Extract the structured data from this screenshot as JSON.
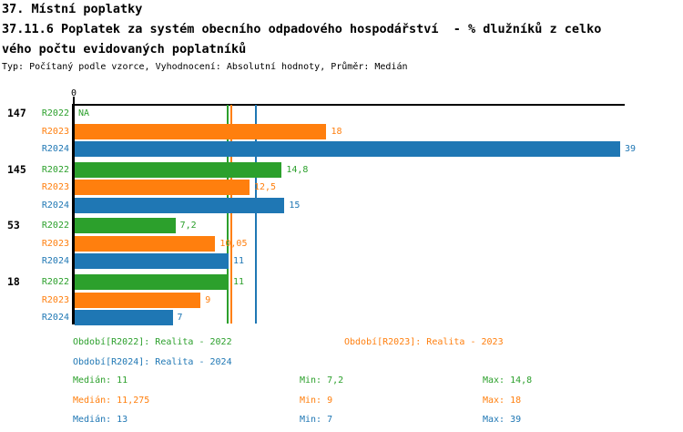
{
  "header": {
    "section_title": "37. Místní poplatky",
    "indicator_title_line1": "37.11.6 Poplatek za systém obecního odpadového hospodářství  - % dlužníků z celko",
    "indicator_title_line2": "vého počtu evidovaných poplatníků",
    "meta": "Typ: Počítaný podle vzorce, Vyhodnocení: Absolutní hodnoty, Průměr: Medián"
  },
  "chart_data": {
    "type": "bar",
    "orientation": "horizontal",
    "title": "37.11.6 Poplatek za systém obecního odpadového hospodářství - % dlužníků z celkového počtu evidovaných poplatníků",
    "axis": {
      "zero_label": "0",
      "x_min": 0,
      "x_max": 39
    },
    "categories": [
      "147",
      "145",
      "53",
      "18"
    ],
    "series": [
      {
        "name": "R2022",
        "color": "#2ca02c",
        "values": [
          null,
          14.8,
          7.2,
          11
        ],
        "value_labels": [
          "NA",
          "14,8",
          "7,2",
          "11"
        ],
        "median": 11,
        "median_label": "11"
      },
      {
        "name": "R2023",
        "color": "#ff7f0e",
        "values": [
          18,
          12.5,
          10.05,
          9
        ],
        "value_labels": [
          "18",
          "12,5",
          "10,05",
          "9"
        ],
        "median": 11.275,
        "median_label": "11,275"
      },
      {
        "name": "R2024",
        "color": "#1f77b4",
        "values": [
          39,
          15,
          11,
          7
        ],
        "value_labels": [
          "39",
          "15",
          "11",
          "7"
        ],
        "median": 13,
        "median_label": "13"
      }
    ],
    "legend_position": "bottom",
    "grid": false
  },
  "legend": {
    "items": [
      {
        "label": "Období[R2022]: Realita - 2022"
      },
      {
        "label": "Období[R2023]: Realita - 2023"
      },
      {
        "label": "Období[R2024]: Realita - 2024"
      }
    ]
  },
  "stats": {
    "rows": [
      {
        "median": "Medián: 11",
        "min": "Min: 7,2",
        "max": "Max: 14,8"
      },
      {
        "median": "Medián: 11,275",
        "min": "Min: 9",
        "max": "Max: 18"
      },
      {
        "median": "Medián: 13",
        "min": "Min: 7",
        "max": "Max: 39"
      }
    ]
  }
}
